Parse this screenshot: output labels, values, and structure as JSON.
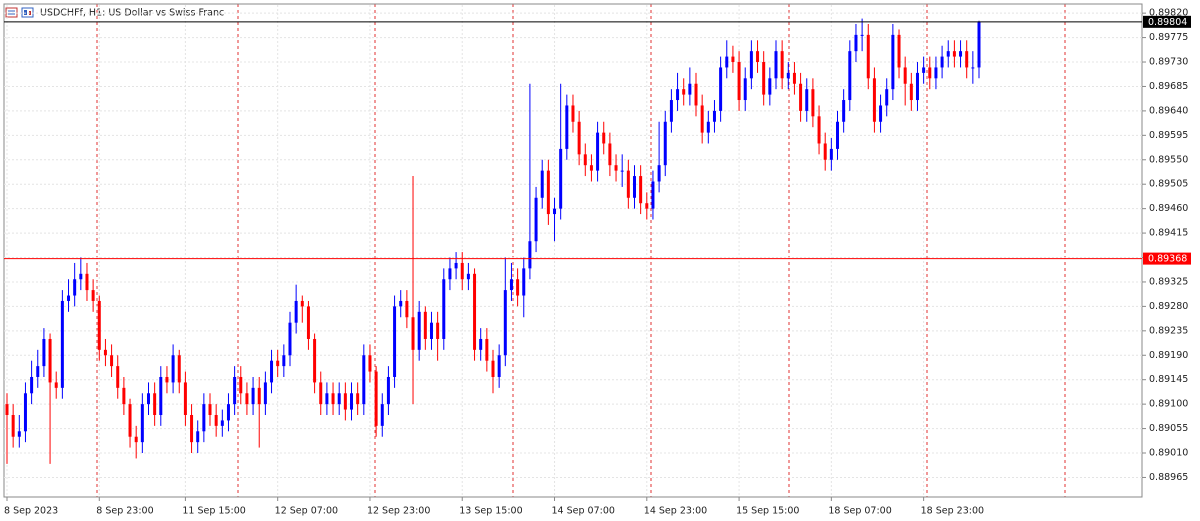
{
  "chart_data": {
    "type": "candlestick",
    "title": "USDCHFf, H1:  US Dollar vs Swiss Franc",
    "up_color": "#0000ff",
    "down_color": "#ff0000",
    "grid": true,
    "ylim": [
      0.88929,
      0.89835
    ],
    "yticks": [
      {
        "value": 0.8982,
        "label": "0.89820"
      },
      0.89775,
      {
        "value": 0.8973,
        "label": "0.89730"
      },
      0.89685,
      {
        "value": 0.8964,
        "label": "0.89640"
      },
      0.89595,
      {
        "value": 0.8955,
        "label": "0.89550"
      },
      0.89505,
      {
        "value": 0.8946,
        "label": "0.89460"
      },
      0.89415,
      {
        "value": 0.8937,
        "label": "0.89370"
      },
      0.89325,
      {
        "value": 0.8928,
        "label": "0.89280"
      },
      0.89235,
      {
        "value": 0.8919,
        "label": "0.89190"
      },
      0.89145,
      {
        "value": 0.891,
        "label": "0.89100"
      },
      0.89055,
      {
        "value": 0.8901,
        "label": "0.89010"
      },
      0.88965
    ],
    "price_lines": [
      {
        "value": 0.89804,
        "color": "#000000"
      },
      {
        "value": 0.89368,
        "color": "#ff0000"
      }
    ],
    "categories": [
      "8 Sep 2023",
      null,
      null,
      null,
      null,
      null,
      null,
      null,
      null,
      null,
      null,
      null,
      null,
      null,
      null,
      "8 Sep 23:00",
      null,
      null,
      null,
      null,
      null,
      null,
      null,
      null,
      null,
      null,
      null,
      null,
      null,
      "11 Sep 15:00",
      null,
      null,
      null,
      null,
      null,
      null,
      null,
      null,
      null,
      null,
      null,
      null,
      null,
      null,
      "12 Sep 07:00",
      null,
      null,
      null,
      null,
      null,
      null,
      null,
      null,
      null,
      null,
      null,
      null,
      null,
      null,
      "12 Sep 23:00",
      null,
      null,
      null,
      null,
      null,
      null,
      null,
      null,
      null,
      null,
      null,
      null,
      null,
      null,
      "13 Sep 15:00",
      null,
      null,
      null,
      null,
      null,
      null,
      null,
      null,
      null,
      null,
      null,
      null,
      null,
      null,
      "14 Sep 07:00",
      null,
      null,
      null,
      null,
      null,
      null,
      null,
      null,
      null,
      null,
      null,
      null,
      null,
      null,
      "14 Sep 23:00",
      null,
      null,
      null,
      null,
      null,
      null,
      null,
      null,
      null,
      null,
      null,
      null,
      null,
      null,
      "15 Sep 15:00",
      null,
      null,
      null,
      null,
      null,
      null,
      null,
      null,
      null,
      null,
      null,
      null,
      null,
      null,
      "18 Sep 07:00",
      null,
      null,
      null,
      null,
      null,
      null,
      null,
      null,
      null,
      null,
      null,
      null,
      null,
      null,
      "18 Sep 23:00",
      null,
      null,
      null,
      null,
      null,
      null,
      null,
      null,
      null
    ],
    "open": [
      0.891,
      0.8908,
      0.8904,
      0.8905,
      0.8912,
      0.8915,
      0.8917,
      0.8922,
      0.8914,
      0.8913,
      0.8929,
      0.893,
      0.8933,
      0.8934,
      0.8931,
      0.8929,
      0.892,
      0.8919,
      0.8917,
      0.8913,
      0.891,
      0.8904,
      0.8903,
      0.891,
      0.8912,
      0.8908,
      0.8915,
      0.8914,
      0.8919,
      0.8914,
      0.8908,
      0.8903,
      0.8905,
      0.891,
      0.8908,
      0.8906,
      0.8907,
      0.891,
      0.8915,
      0.8912,
      0.891,
      0.8913,
      0.891,
      0.8914,
      0.8918,
      0.8917,
      0.8919,
      0.8925,
      0.8929,
      0.8928,
      0.8922,
      0.8914,
      0.891,
      0.8912,
      0.891,
      0.8912,
      0.8909,
      0.8912,
      0.891,
      0.8919,
      0.8916,
      0.8906,
      0.891,
      0.8915,
      0.8928,
      0.8929,
      0.8926,
      0.892,
      0.8927,
      0.8922,
      0.8925,
      0.8922,
      0.8933,
      0.8935,
      0.8936,
      0.8933,
      0.8934,
      0.892,
      0.8922,
      0.8918,
      0.8915,
      0.8919,
      0.8931,
      0.8933,
      0.893,
      0.8935,
      0.894,
      0.8948,
      0.8953,
      0.8945,
      0.8946,
      0.8957,
      0.8965,
      0.8962,
      0.8956,
      0.8954,
      0.8953,
      0.896,
      0.8958,
      0.8954,
      0.8953,
      0.8953,
      0.8948,
      0.8952,
      0.8947,
      0.8946,
      0.8951,
      0.8954,
      0.8962,
      0.8966,
      0.8968,
      0.8967,
      0.8969,
      0.8965,
      0.896,
      0.8962,
      0.8964,
      0.8972,
      0.8974,
      0.8973,
      0.8966,
      0.897,
      0.8975,
      0.8973,
      0.8967,
      0.897,
      0.8975,
      0.897,
      0.8971,
      0.8969,
      0.8964,
      0.8968,
      0.8963,
      0.8958,
      0.8955,
      0.8957,
      0.8962,
      0.8966,
      0.8975,
      0.8978,
      0.8978,
      0.897,
      0.8962,
      0.8965,
      0.8968,
      0.8978,
      0.8972,
      0.8969,
      0.8966,
      0.8971,
      0.8972,
      0.897,
      0.8972,
      0.8974,
      0.8975,
      0.8974,
      0.8975,
      0.8972,
      0.8972
    ],
    "high": [
      0.8912,
      0.891,
      0.8908,
      0.8914,
      0.8918,
      0.892,
      0.8924,
      0.8923,
      0.8916,
      0.8931,
      0.8933,
      0.8936,
      0.8937,
      0.8936,
      0.8933,
      0.893,
      0.8922,
      0.8921,
      0.8919,
      0.8915,
      0.8911,
      0.8906,
      0.8912,
      0.8914,
      0.8914,
      0.8917,
      0.8917,
      0.8921,
      0.892,
      0.8916,
      0.891,
      0.8907,
      0.8912,
      0.8912,
      0.891,
      0.8909,
      0.8912,
      0.8917,
      0.8917,
      0.8914,
      0.8915,
      0.8915,
      0.8916,
      0.892,
      0.892,
      0.8921,
      0.8927,
      0.8932,
      0.893,
      0.8929,
      0.8923,
      0.8916,
      0.8914,
      0.8914,
      0.8914,
      0.8914,
      0.8914,
      0.8914,
      0.8921,
      0.8921,
      0.8917,
      0.8912,
      0.8917,
      0.893,
      0.8931,
      0.8931,
      0.8952,
      0.8929,
      0.8928,
      0.8927,
      0.8927,
      0.8935,
      0.8937,
      0.8938,
      0.8938,
      0.8936,
      0.8935,
      0.8924,
      0.8924,
      0.892,
      0.8921,
      0.8937,
      0.8936,
      0.8935,
      0.8937,
      0.8969,
      0.895,
      0.8955,
      0.8955,
      0.8948,
      0.8969,
      0.8967,
      0.8967,
      0.8964,
      0.8958,
      0.8956,
      0.8962,
      0.8962,
      0.896,
      0.8956,
      0.8956,
      0.8955,
      0.8954,
      0.8954,
      0.8949,
      0.8953,
      0.8962,
      0.8964,
      0.8968,
      0.8971,
      0.897,
      0.8972,
      0.8971,
      0.8967,
      0.8964,
      0.8966,
      0.8974,
      0.8977,
      0.8976,
      0.8975,
      0.8972,
      0.8977,
      0.8977,
      0.8975,
      0.8972,
      0.8977,
      0.8977,
      0.8973,
      0.8973,
      0.8971,
      0.897,
      0.897,
      0.8965,
      0.896,
      0.8959,
      0.8964,
      0.8968,
      0.8977,
      0.898,
      0.8981,
      0.898,
      0.8972,
      0.8967,
      0.897,
      0.898,
      0.8979,
      0.8974,
      0.8971,
      0.8973,
      0.8974,
      0.8974,
      0.8974,
      0.8976,
      0.8977,
      0.8977,
      0.8977,
      0.8977,
      0.8975,
      0.89806
    ],
    "low": [
      0.8899,
      0.8902,
      0.8902,
      0.8903,
      0.891,
      0.8913,
      0.8915,
      0.8899,
      0.8911,
      0.8911,
      0.8927,
      0.8928,
      0.8931,
      0.8929,
      0.8927,
      0.8918,
      0.8917,
      0.8915,
      0.8911,
      0.8908,
      0.8902,
      0.89,
      0.8901,
      0.8908,
      0.8906,
      0.8906,
      0.8912,
      0.8912,
      0.8912,
      0.8906,
      0.8901,
      0.8901,
      0.8903,
      0.8906,
      0.8904,
      0.8904,
      0.8905,
      0.8908,
      0.891,
      0.8908,
      0.8908,
      0.8902,
      0.8908,
      0.8912,
      0.8915,
      0.8915,
      0.8917,
      0.8923,
      0.8925,
      0.892,
      0.8912,
      0.8908,
      0.8908,
      0.8908,
      0.8908,
      0.8907,
      0.8907,
      0.8908,
      0.8908,
      0.8914,
      0.8904,
      0.8904,
      0.8908,
      0.8913,
      0.8926,
      0.8924,
      0.891,
      0.8918,
      0.892,
      0.892,
      0.8918,
      0.892,
      0.8931,
      0.8933,
      0.8931,
      0.8931,
      0.8918,
      0.8918,
      0.8916,
      0.8912,
      0.8913,
      0.8917,
      0.8929,
      0.8928,
      0.8926,
      0.8933,
      0.8938,
      0.8946,
      0.8943,
      0.894,
      0.8944,
      0.8955,
      0.896,
      0.8954,
      0.8952,
      0.8951,
      0.8951,
      0.8956,
      0.8952,
      0.8951,
      0.895,
      0.8946,
      0.8946,
      0.8945,
      0.8944,
      0.8944,
      0.8949,
      0.8952,
      0.896,
      0.8964,
      0.8965,
      0.8965,
      0.8963,
      0.8958,
      0.8958,
      0.896,
      0.8962,
      0.897,
      0.8971,
      0.8964,
      0.8964,
      0.8968,
      0.8971,
      0.8965,
      0.8965,
      0.8968,
      0.8968,
      0.8968,
      0.8967,
      0.8962,
      0.8962,
      0.8961,
      0.8956,
      0.8953,
      0.8953,
      0.8955,
      0.896,
      0.8964,
      0.8973,
      0.8975,
      0.8968,
      0.896,
      0.896,
      0.8963,
      0.8966,
      0.897,
      0.8965,
      0.8964,
      0.8964,
      0.8969,
      0.8968,
      0.8968,
      0.897,
      0.8972,
      0.8972,
      0.8972,
      0.897,
      0.8969,
      0.897
    ],
    "close": [
      0.8908,
      0.8904,
      0.8905,
      0.8912,
      0.8915,
      0.8917,
      0.8922,
      0.8914,
      0.8913,
      0.8929,
      0.893,
      0.8933,
      0.8934,
      0.8931,
      0.8929,
      0.892,
      0.8919,
      0.8917,
      0.8913,
      0.891,
      0.8904,
      0.8903,
      0.891,
      0.8912,
      0.8908,
      0.8915,
      0.8914,
      0.8919,
      0.8914,
      0.8908,
      0.8903,
      0.8905,
      0.891,
      0.8908,
      0.8906,
      0.8907,
      0.891,
      0.8915,
      0.8912,
      0.891,
      0.8913,
      0.891,
      0.8914,
      0.8918,
      0.8917,
      0.8919,
      0.8925,
      0.8929,
      0.8928,
      0.8922,
      0.8914,
      0.891,
      0.8912,
      0.891,
      0.8912,
      0.8909,
      0.8912,
      0.891,
      0.8919,
      0.8916,
      0.8906,
      0.891,
      0.8915,
      0.8928,
      0.8929,
      0.8926,
      0.892,
      0.8927,
      0.8922,
      0.8925,
      0.8922,
      0.8933,
      0.8935,
      0.8936,
      0.8933,
      0.8934,
      0.892,
      0.8922,
      0.8918,
      0.8915,
      0.8919,
      0.8931,
      0.8933,
      0.893,
      0.8935,
      0.894,
      0.8948,
      0.8953,
      0.8945,
      0.8946,
      0.8957,
      0.8965,
      0.8962,
      0.8956,
      0.8954,
      0.8953,
      0.896,
      0.8958,
      0.8954,
      0.8953,
      0.8953,
      0.8948,
      0.8952,
      0.8947,
      0.8946,
      0.8951,
      0.8954,
      0.8962,
      0.8966,
      0.8968,
      0.8967,
      0.8969,
      0.8965,
      0.896,
      0.8962,
      0.8964,
      0.8972,
      0.8974,
      0.8973,
      0.8966,
      0.897,
      0.8975,
      0.8973,
      0.8967,
      0.897,
      0.8975,
      0.897,
      0.8971,
      0.8969,
      0.8964,
      0.8968,
      0.8963,
      0.8958,
      0.8955,
      0.8957,
      0.8962,
      0.8966,
      0.8975,
      0.8978,
      0.8978,
      0.897,
      0.8962,
      0.8965,
      0.8968,
      0.8978,
      0.8972,
      0.8969,
      0.8966,
      0.8971,
      0.8972,
      0.897,
      0.8972,
      0.8974,
      0.8975,
      0.8974,
      0.8975,
      0.8972,
      0.8972,
      0.89804
    ]
  }
}
